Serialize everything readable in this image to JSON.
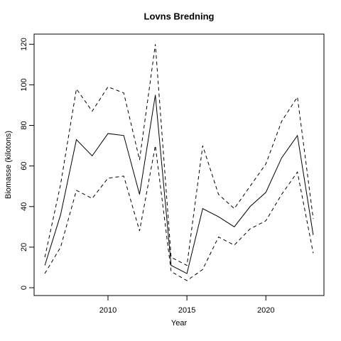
{
  "chart_data": {
    "type": "line",
    "title": "Lovns Bredning",
    "x_label": "Year",
    "y_label": "Biomasse (kilotons)",
    "x": [
      2006,
      2007,
      2008,
      2009,
      2010,
      2011,
      2012,
      2013,
      2014,
      2015,
      2016,
      2017,
      2018,
      2019,
      2020,
      2021,
      2022,
      2023
    ],
    "series": [
      {
        "color": "#000000",
        "linestyle": "solid",
        "values": [
          11,
          36,
          73,
          65,
          76,
          75,
          46,
          95,
          11,
          7,
          39,
          35,
          30,
          40,
          47,
          64,
          75,
          26
        ]
      },
      {
        "color": "#000000",
        "linestyle": "dashed",
        "values": [
          15,
          51,
          98,
          87,
          99,
          96,
          63,
          120,
          15,
          11,
          70,
          46,
          39,
          50,
          61,
          82,
          94,
          34
        ]
      },
      {
        "color": "#000000",
        "linestyle": "dashed",
        "values": [
          7,
          20,
          48,
          44,
          54,
          55,
          28,
          70,
          8,
          3.5,
          9,
          25,
          21,
          29,
          33,
          46,
          57,
          17
        ]
      }
    ],
    "xlim": [
      2005.32,
      2023.68
    ],
    "xticks": [
      2010,
      2015,
      2020
    ],
    "ylim": [
      -3.85,
      125
    ],
    "yticks": [
      0,
      20,
      40,
      60,
      80,
      100,
      120
    ]
  }
}
